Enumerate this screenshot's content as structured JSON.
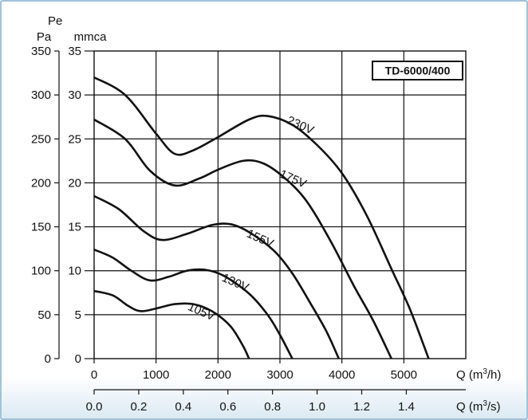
{
  "chart_data": {
    "type": "line",
    "title": "TD-6000/400",
    "x_axis": {
      "label": "Q (m³/h)",
      "range": [
        0,
        6000
      ],
      "ticks": [
        0,
        1000,
        2000,
        3000,
        4000,
        5000
      ]
    },
    "x2_axis": {
      "label": "Q (m³/s)",
      "range": [
        0,
        1.6667
      ],
      "ticks": [
        "0.0",
        "0.2",
        "0.4",
        "0.6",
        "0.8",
        "1.0",
        "1.2",
        "1.4"
      ]
    },
    "y_axis_left": {
      "label_top": "Pe",
      "unit": "Pa",
      "range": [
        0,
        350
      ],
      "ticks": [
        0,
        50,
        100,
        150,
        200,
        250,
        300,
        350
      ]
    },
    "y_axis_right": {
      "unit": "mmca",
      "range": [
        0,
        35
      ],
      "ticks": [
        0,
        5,
        10,
        15,
        20,
        25,
        30,
        35
      ]
    },
    "grid": true,
    "series": [
      {
        "name": "230V",
        "points": [
          [
            0,
            320
          ],
          [
            500,
            300
          ],
          [
            1000,
            256
          ],
          [
            1300,
            233
          ],
          [
            1600,
            237
          ],
          [
            2000,
            252
          ],
          [
            2500,
            272
          ],
          [
            2800,
            276
          ],
          [
            3200,
            266
          ],
          [
            3600,
            243
          ],
          [
            4000,
            211
          ],
          [
            4400,
            163
          ],
          [
            4800,
            102
          ],
          [
            5100,
            56
          ],
          [
            5400,
            0
          ]
        ]
      },
      {
        "name": "175V",
        "points": [
          [
            0,
            272
          ],
          [
            500,
            250
          ],
          [
            900,
            214
          ],
          [
            1300,
            197
          ],
          [
            1700,
            205
          ],
          [
            2000,
            215
          ],
          [
            2400,
            225
          ],
          [
            2700,
            223
          ],
          [
            3000,
            210
          ],
          [
            3400,
            182
          ],
          [
            3800,
            136
          ],
          [
            4200,
            82
          ],
          [
            4500,
            44
          ],
          [
            4800,
            0
          ]
        ]
      },
      {
        "name": "155V",
        "points": [
          [
            0,
            185
          ],
          [
            400,
            170
          ],
          [
            800,
            145
          ],
          [
            1100,
            135
          ],
          [
            1500,
            142
          ],
          [
            1900,
            152
          ],
          [
            2200,
            153
          ],
          [
            2500,
            144
          ],
          [
            2900,
            123
          ],
          [
            3200,
            97
          ],
          [
            3500,
            62
          ],
          [
            3750,
            31
          ],
          [
            3950,
            0
          ]
        ]
      },
      {
        "name": "130V",
        "points": [
          [
            0,
            124
          ],
          [
            300,
            115
          ],
          [
            600,
            100
          ],
          [
            900,
            89
          ],
          [
            1200,
            93
          ],
          [
            1500,
            100
          ],
          [
            1800,
            101
          ],
          [
            2100,
            94
          ],
          [
            2500,
            74
          ],
          [
            2800,
            50
          ],
          [
            3000,
            27
          ],
          [
            3200,
            0
          ]
        ]
      },
      {
        "name": "105V",
        "points": [
          [
            0,
            77
          ],
          [
            300,
            72
          ],
          [
            550,
            60
          ],
          [
            750,
            54
          ],
          [
            1000,
            57
          ],
          [
            1300,
            62
          ],
          [
            1600,
            62
          ],
          [
            1900,
            54
          ],
          [
            2200,
            37
          ],
          [
            2400,
            15
          ],
          [
            2500,
            0
          ]
        ]
      }
    ],
    "curve_labels": [
      {
        "series": "230V",
        "text": "230V",
        "at": [
          3100,
          268
        ]
      },
      {
        "series": "175V",
        "text": "175V",
        "at": [
          2980,
          207
        ]
      },
      {
        "series": "155V",
        "text": "155V",
        "at": [
          2450,
          139
        ]
      },
      {
        "series": "130V",
        "text": "130V",
        "at": [
          2050,
          89
        ]
      },
      {
        "series": "105V",
        "text": "105V",
        "at": [
          1500,
          56
        ]
      }
    ]
  }
}
